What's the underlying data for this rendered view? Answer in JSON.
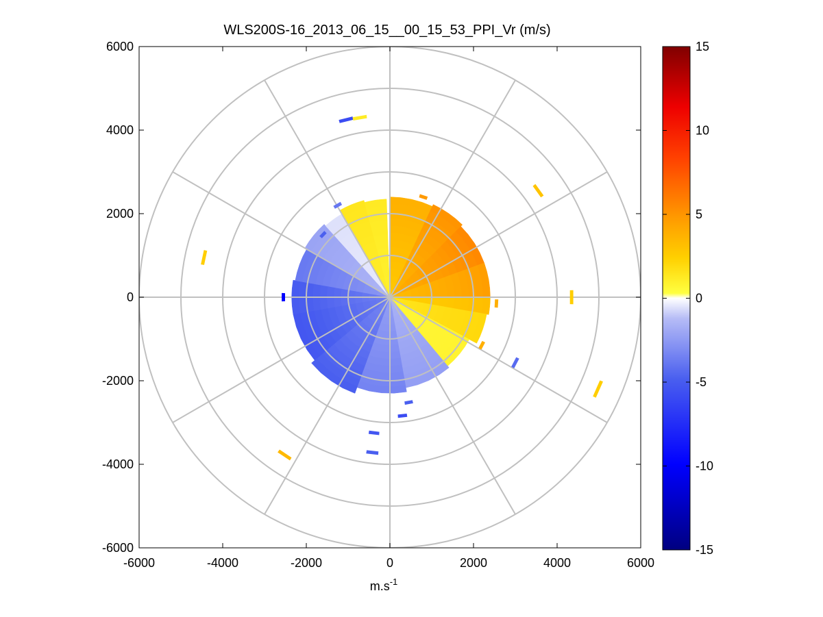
{
  "chart_data": {
    "type": "heatmap",
    "subtype": "polar-ppi-scan",
    "title": "WLS200S-16_2013_06_15__00_15_53_PPI_Vr (m/s)",
    "xlabel": "m.s",
    "xlabel_sup": "-1",
    "ylabel": "",
    "xlim": [
      -6000,
      6000
    ],
    "ylim": [
      -6000,
      6000
    ],
    "xticks": [
      -6000,
      -4000,
      -2000,
      0,
      2000,
      4000,
      6000
    ],
    "yticks": [
      -6000,
      -4000,
      -2000,
      0,
      2000,
      4000,
      6000
    ],
    "polar_grid": {
      "rings": [
        1000,
        2000,
        3000,
        4000,
        5000,
        6000
      ],
      "spokes_deg": [
        0,
        30,
        60,
        90,
        120,
        150,
        180,
        210,
        240,
        270,
        300,
        330
      ]
    },
    "colorbar": {
      "range": [
        -15,
        15
      ],
      "ticks": [
        -15,
        -10,
        -5,
        0,
        5,
        10,
        15
      ],
      "colormap": "blue-white-yellow-red"
    },
    "field": {
      "description": "radial velocity sectors (azimuth clockwise from north, range in m, velocity m/s)",
      "sectors": [
        {
          "az_from": 0,
          "az_to": 25,
          "r_max": 2400,
          "v": 3.6
        },
        {
          "az_from": 25,
          "az_to": 45,
          "r_max": 2450,
          "v": 4.8
        },
        {
          "az_from": 45,
          "az_to": 70,
          "r_max": 2400,
          "v": 5.2
        },
        {
          "az_from": 70,
          "az_to": 90,
          "r_max": 2400,
          "v": 4.4
        },
        {
          "az_from": 90,
          "az_to": 100,
          "r_max": 2400,
          "v": 3.0
        },
        {
          "az_from": 100,
          "az_to": 118,
          "r_max": 2350,
          "v": 1.8
        },
        {
          "az_from": 118,
          "az_to": 140,
          "r_max": 2150,
          "v": 0.6
        },
        {
          "az_from": 140,
          "az_to": 170,
          "r_max": 2200,
          "v": -2.2
        },
        {
          "az_from": 170,
          "az_to": 200,
          "r_max": 2300,
          "v": -3.2
        },
        {
          "az_from": 200,
          "az_to": 230,
          "r_max": 2450,
          "v": -4.6
        },
        {
          "az_from": 230,
          "az_to": 260,
          "r_max": 2350,
          "v": -5.0
        },
        {
          "az_from": 260,
          "az_to": 280,
          "r_max": 2350,
          "v": -4.8
        },
        {
          "az_from": 280,
          "az_to": 300,
          "r_max": 2300,
          "v": -3.6
        },
        {
          "az_from": 300,
          "az_to": 318,
          "r_max": 2350,
          "v": -2.0
        },
        {
          "az_from": 318,
          "az_to": 330,
          "r_max": 2300,
          "v": -0.5
        },
        {
          "az_from": 330,
          "az_to": 345,
          "r_max": 2400,
          "v": 1.2
        },
        {
          "az_from": 345,
          "az_to": 358,
          "r_max": 2350,
          "v": 1.0
        }
      ],
      "isolated_returns": [
        {
          "x": -1050,
          "y": 4250,
          "v": -6.0
        },
        {
          "x": -720,
          "y": 4300,
          "v": 1.0
        },
        {
          "x": 3550,
          "y": 2550,
          "v": 3.0
        },
        {
          "x": -4450,
          "y": 950,
          "v": 2.5
        },
        {
          "x": 4350,
          "y": 0,
          "v": 2.5
        },
        {
          "x": 4980,
          "y": -2200,
          "v": 2.5
        },
        {
          "x": -2520,
          "y": -3780,
          "v": 3.5
        },
        {
          "x": 3000,
          "y": -1570,
          "v": -4.5
        },
        {
          "x": -2550,
          "y": 0,
          "v": -10.0
        },
        {
          "x": 450,
          "y": -2520,
          "v": -5.0
        },
        {
          "x": 300,
          "y": -2840,
          "v": -6.0
        },
        {
          "x": -380,
          "y": -3250,
          "v": -5.5
        },
        {
          "x": -420,
          "y": -3720,
          "v": -5.0
        },
        {
          "x": 2550,
          "y": -150,
          "v": 4.0
        },
        {
          "x": 2200,
          "y": -1150,
          "v": 4.0
        },
        {
          "x": 800,
          "y": 2400,
          "v": 5.0
        },
        {
          "x": -1250,
          "y": 2200,
          "v": -4.0
        },
        {
          "x": -1600,
          "y": 1500,
          "v": -5.0
        }
      ]
    }
  }
}
